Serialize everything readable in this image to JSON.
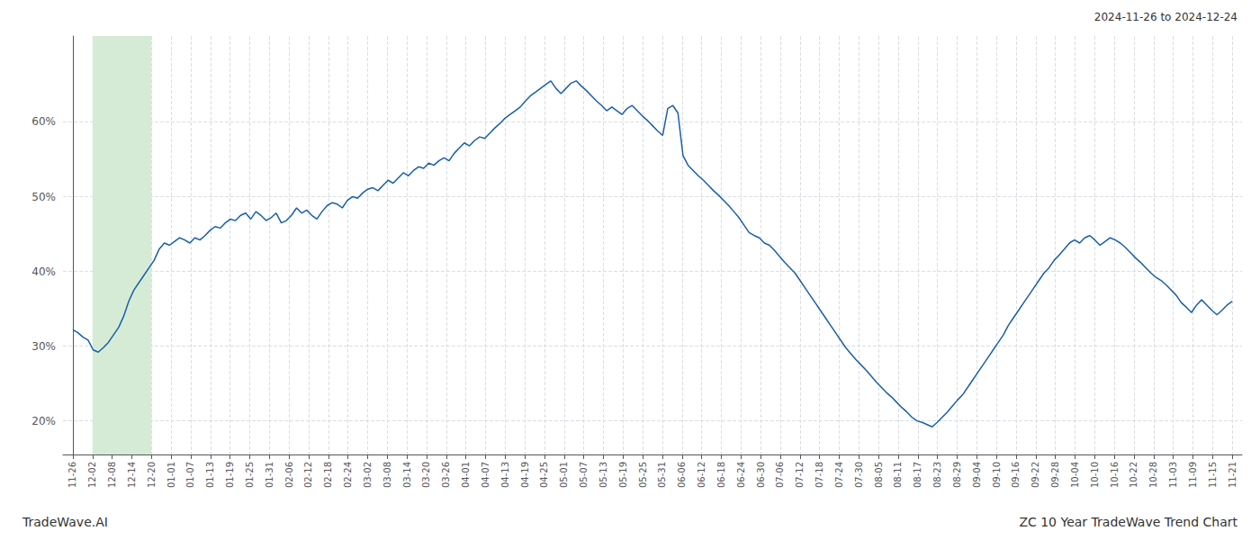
{
  "chart_data": {
    "type": "line",
    "title": "ZC 10 Year TradeWave Trend Chart",
    "subtitle": "2024-11-26 to 2024-12-24",
    "annotations": [
      "TradeWave.AI"
    ],
    "color": "#1a5fa8",
    "grid": true,
    "highlight": {
      "from": 1,
      "to": 4,
      "color": "#d6ebd6"
    },
    "xlim": [
      -0.5,
      59.5
    ],
    "xticks": [
      {
        "value": 0,
        "label": "11-26"
      },
      {
        "value": 1,
        "label": "12-02"
      },
      {
        "value": 2,
        "label": "12-08"
      },
      {
        "value": 3,
        "label": "12-14"
      },
      {
        "value": 4,
        "label": "12-20"
      },
      {
        "value": 5,
        "label": "01-01"
      },
      {
        "value": 6,
        "label": "01-07"
      },
      {
        "value": 7,
        "label": "01-13"
      },
      {
        "value": 8,
        "label": "01-19"
      },
      {
        "value": 9,
        "label": "01-25"
      },
      {
        "value": 10,
        "label": "01-31"
      },
      {
        "value": 11,
        "label": "02-06"
      },
      {
        "value": 12,
        "label": "02-12"
      },
      {
        "value": 13,
        "label": "02-18"
      },
      {
        "value": 14,
        "label": "02-24"
      },
      {
        "value": 15,
        "label": "03-02"
      },
      {
        "value": 16,
        "label": "03-08"
      },
      {
        "value": 17,
        "label": "03-14"
      },
      {
        "value": 18,
        "label": "03-20"
      },
      {
        "value": 19,
        "label": "03-26"
      },
      {
        "value": 20,
        "label": "04-01"
      },
      {
        "value": 21,
        "label": "04-07"
      },
      {
        "value": 22,
        "label": "04-13"
      },
      {
        "value": 23,
        "label": "04-19"
      },
      {
        "value": 24,
        "label": "04-25"
      },
      {
        "value": 25,
        "label": "05-01"
      },
      {
        "value": 26,
        "label": "05-07"
      },
      {
        "value": 27,
        "label": "05-13"
      },
      {
        "value": 28,
        "label": "05-19"
      },
      {
        "value": 29,
        "label": "05-25"
      },
      {
        "value": 30,
        "label": "05-31"
      },
      {
        "value": 31,
        "label": "06-06"
      },
      {
        "value": 32,
        "label": "06-12"
      },
      {
        "value": 33,
        "label": "06-18"
      },
      {
        "value": 34,
        "label": "06-24"
      },
      {
        "value": 35,
        "label": "06-30"
      },
      {
        "value": 36,
        "label": "07-06"
      },
      {
        "value": 37,
        "label": "07-12"
      },
      {
        "value": 38,
        "label": "07-18"
      },
      {
        "value": 39,
        "label": "07-24"
      },
      {
        "value": 40,
        "label": "07-30"
      },
      {
        "value": 41,
        "label": "08-05"
      },
      {
        "value": 42,
        "label": "08-11"
      },
      {
        "value": 43,
        "label": "08-17"
      },
      {
        "value": 44,
        "label": "08-23"
      },
      {
        "value": 45,
        "label": "08-29"
      },
      {
        "value": 46,
        "label": "09-04"
      },
      {
        "value": 47,
        "label": "09-10"
      },
      {
        "value": 48,
        "label": "09-16"
      },
      {
        "value": 49,
        "label": "09-22"
      },
      {
        "value": 50,
        "label": "09-28"
      },
      {
        "value": 51,
        "label": "10-04"
      },
      {
        "value": 52,
        "label": "10-10"
      },
      {
        "value": 53,
        "label": "10-16"
      },
      {
        "value": 54,
        "label": "10-22"
      },
      {
        "value": 55,
        "label": "10-28"
      },
      {
        "value": 56,
        "label": "11-03"
      },
      {
        "value": 57,
        "label": "11-09"
      },
      {
        "value": 58,
        "label": "11-15"
      },
      {
        "value": 59,
        "label": "11-21"
      }
    ],
    "ylim": [
      0.155,
      0.715
    ],
    "yticks": [
      {
        "value": 0.2,
        "label": "20%"
      },
      {
        "value": 0.3,
        "label": "30%"
      },
      {
        "value": 0.4,
        "label": "40%"
      },
      {
        "value": 0.5,
        "label": "50%"
      },
      {
        "value": 0.6,
        "label": "60%"
      }
    ],
    "x": [
      0,
      0.2588,
      0.5175,
      0.7763,
      1.0351,
      1.2939,
      1.5526,
      1.8114,
      2.0702,
      2.3289,
      2.5877,
      2.8465,
      3.1053,
      3.364,
      3.6228,
      3.8816,
      4.1404,
      4.3991,
      4.6579,
      4.9167,
      5.1754,
      5.4342,
      5.693,
      5.9518,
      6.2105,
      6.4693,
      6.7281,
      6.9868,
      7.2456,
      7.5044,
      7.7632,
      8.0219,
      8.2807,
      8.5395,
      8.7982,
      9.057,
      9.3158,
      9.5746,
      9.8333,
      10.0921,
      10.3509,
      10.6096,
      10.8684,
      11.1272,
      11.386,
      11.6447,
      11.9035,
      12.1623,
      12.4211,
      12.6798,
      12.9386,
      13.1974,
      13.4561,
      13.7149,
      13.9737,
      14.2325,
      14.4912,
      14.75,
      15.0088,
      15.2675,
      15.5263,
      15.7851,
      16.0439,
      16.3026,
      16.5614,
      16.8202,
      17.0789,
      17.3377,
      17.5965,
      17.8553,
      18.114,
      18.3728,
      18.6316,
      18.8904,
      19.1491,
      19.4079,
      19.6667,
      19.9254,
      20.1842,
      20.443,
      20.7018,
      20.9605,
      21.2193,
      21.4781,
      21.7368,
      21.9956,
      22.2544,
      22.5132,
      22.7719,
      23.0307,
      23.2895,
      23.5482,
      23.807,
      24.0658,
      24.3246,
      24.5833,
      24.8421,
      25.1009,
      25.3596,
      25.6184,
      25.8772,
      26.136,
      26.3947,
      26.6535,
      26.9123,
      27.1711,
      27.4298,
      27.6886,
      27.9474,
      28.2061,
      28.4649,
      28.7237,
      28.9825,
      29.2412,
      29.5,
      29.7588,
      30.0175,
      30.2763,
      30.5351,
      30.7939,
      31.0526,
      31.3114,
      31.5702,
      31.8289,
      32.0877,
      32.3465,
      32.6053,
      32.864,
      33.1228,
      33.3816,
      33.6404,
      33.8991,
      34.1579,
      34.4167,
      34.6754,
      34.9342,
      35.193,
      35.4518,
      35.7105,
      35.9693,
      36.2281,
      36.4868,
      36.7456,
      37.0044,
      37.2632,
      37.5219,
      37.7807,
      38.0395,
      38.2982,
      38.557,
      38.8158,
      39.0746,
      39.3333,
      39.5921,
      39.8509,
      40.1096,
      40.3684,
      40.6272,
      40.886,
      41.1447,
      41.4035,
      41.6623,
      41.9211,
      42.1798,
      42.4386,
      42.6974,
      42.9561,
      43.2149,
      43.4737,
      43.7325,
      43.9912,
      44.25,
      44.5088,
      44.7675,
      45.0263,
      45.2851,
      45.5439,
      45.8026,
      46.0614,
      46.3202,
      46.5789,
      46.8377,
      47.0965,
      47.3553,
      47.614,
      47.8728,
      48.1316,
      48.3904,
      48.6491,
      48.9079,
      49.1667,
      49.4254,
      49.6842,
      49.943,
      50.2018,
      50.4605,
      50.7193,
      50.9781,
      51.2368,
      51.4956,
      51.7544,
      52.0132,
      52.2719,
      52.5307,
      52.7895,
      53.0482,
      53.307,
      53.5658,
      53.8246,
      54.0833,
      54.3421,
      54.6009,
      54.8596,
      55.1184,
      55.3772,
      55.636,
      55.8947,
      56.1535,
      56.4123,
      56.6711,
      56.9298,
      57.1886,
      57.4474,
      57.7061,
      57.9649,
      58.2237,
      58.4825,
      58.7412,
      59
    ],
    "values": [
      0.322,
      0.318,
      0.312,
      0.308,
      0.295,
      0.292,
      0.298,
      0.305,
      0.315,
      0.325,
      0.34,
      0.36,
      0.375,
      0.385,
      0.395,
      0.405,
      0.415,
      0.43,
      0.438,
      0.435,
      0.44,
      0.445,
      0.442,
      0.438,
      0.445,
      0.442,
      0.448,
      0.455,
      0.46,
      0.458,
      0.465,
      0.47,
      0.468,
      0.475,
      0.478,
      0.47,
      0.48,
      0.475,
      0.468,
      0.472,
      0.478,
      0.465,
      0.468,
      0.475,
      0.485,
      0.478,
      0.482,
      0.475,
      0.47,
      0.48,
      0.488,
      0.492,
      0.49,
      0.485,
      0.495,
      0.5,
      0.498,
      0.505,
      0.51,
      0.512,
      0.508,
      0.515,
      0.522,
      0.518,
      0.525,
      0.532,
      0.528,
      0.535,
      0.54,
      0.538,
      0.545,
      0.542,
      0.548,
      0.552,
      0.548,
      0.558,
      0.565,
      0.572,
      0.568,
      0.575,
      0.58,
      0.578,
      0.585,
      0.592,
      0.598,
      0.605,
      0.61,
      0.615,
      0.62,
      0.628,
      0.635,
      0.64,
      0.645,
      0.65,
      0.655,
      0.645,
      0.638,
      0.645,
      0.652,
      0.655,
      0.648,
      0.642,
      0.635,
      0.628,
      0.622,
      0.615,
      0.62,
      0.615,
      0.61,
      0.618,
      0.622,
      0.615,
      0.608,
      0.602,
      0.595,
      0.588,
      0.582,
      0.618,
      0.622,
      0.612,
      0.555,
      0.542,
      0.535,
      0.528,
      0.522,
      0.515,
      0.508,
      0.502,
      0.495,
      0.488,
      0.48,
      0.472,
      0.462,
      0.452,
      0.448,
      0.445,
      0.438,
      0.435,
      0.428,
      0.42,
      0.412,
      0.405,
      0.398,
      0.388,
      0.378,
      0.368,
      0.358,
      0.348,
      0.338,
      0.328,
      0.318,
      0.308,
      0.298,
      0.29,
      0.282,
      0.275,
      0.268,
      0.26,
      0.252,
      0.245,
      0.238,
      0.232,
      0.225,
      0.218,
      0.212,
      0.205,
      0.2,
      0.198,
      0.195,
      0.192,
      0.198,
      0.205,
      0.212,
      0.22,
      0.228,
      0.235,
      0.245,
      0.255,
      0.265,
      0.275,
      0.285,
      0.295,
      0.305,
      0.315,
      0.328,
      0.338,
      0.348,
      0.358,
      0.368,
      0.378,
      0.388,
      0.398,
      0.405,
      0.415,
      0.422,
      0.43,
      0.438,
      0.442,
      0.438,
      0.445,
      0.448,
      0.442,
      0.435,
      0.44,
      0.445,
      0.442,
      0.438,
      0.432,
      0.425,
      0.418,
      0.412,
      0.405,
      0.398,
      0.392,
      0.388,
      0.382,
      0.375,
      0.368,
      0.358,
      0.352,
      0.345,
      0.355,
      0.362,
      0.355,
      0.348,
      0.342,
      0.348,
      0.355,
      0.36
    ]
  }
}
